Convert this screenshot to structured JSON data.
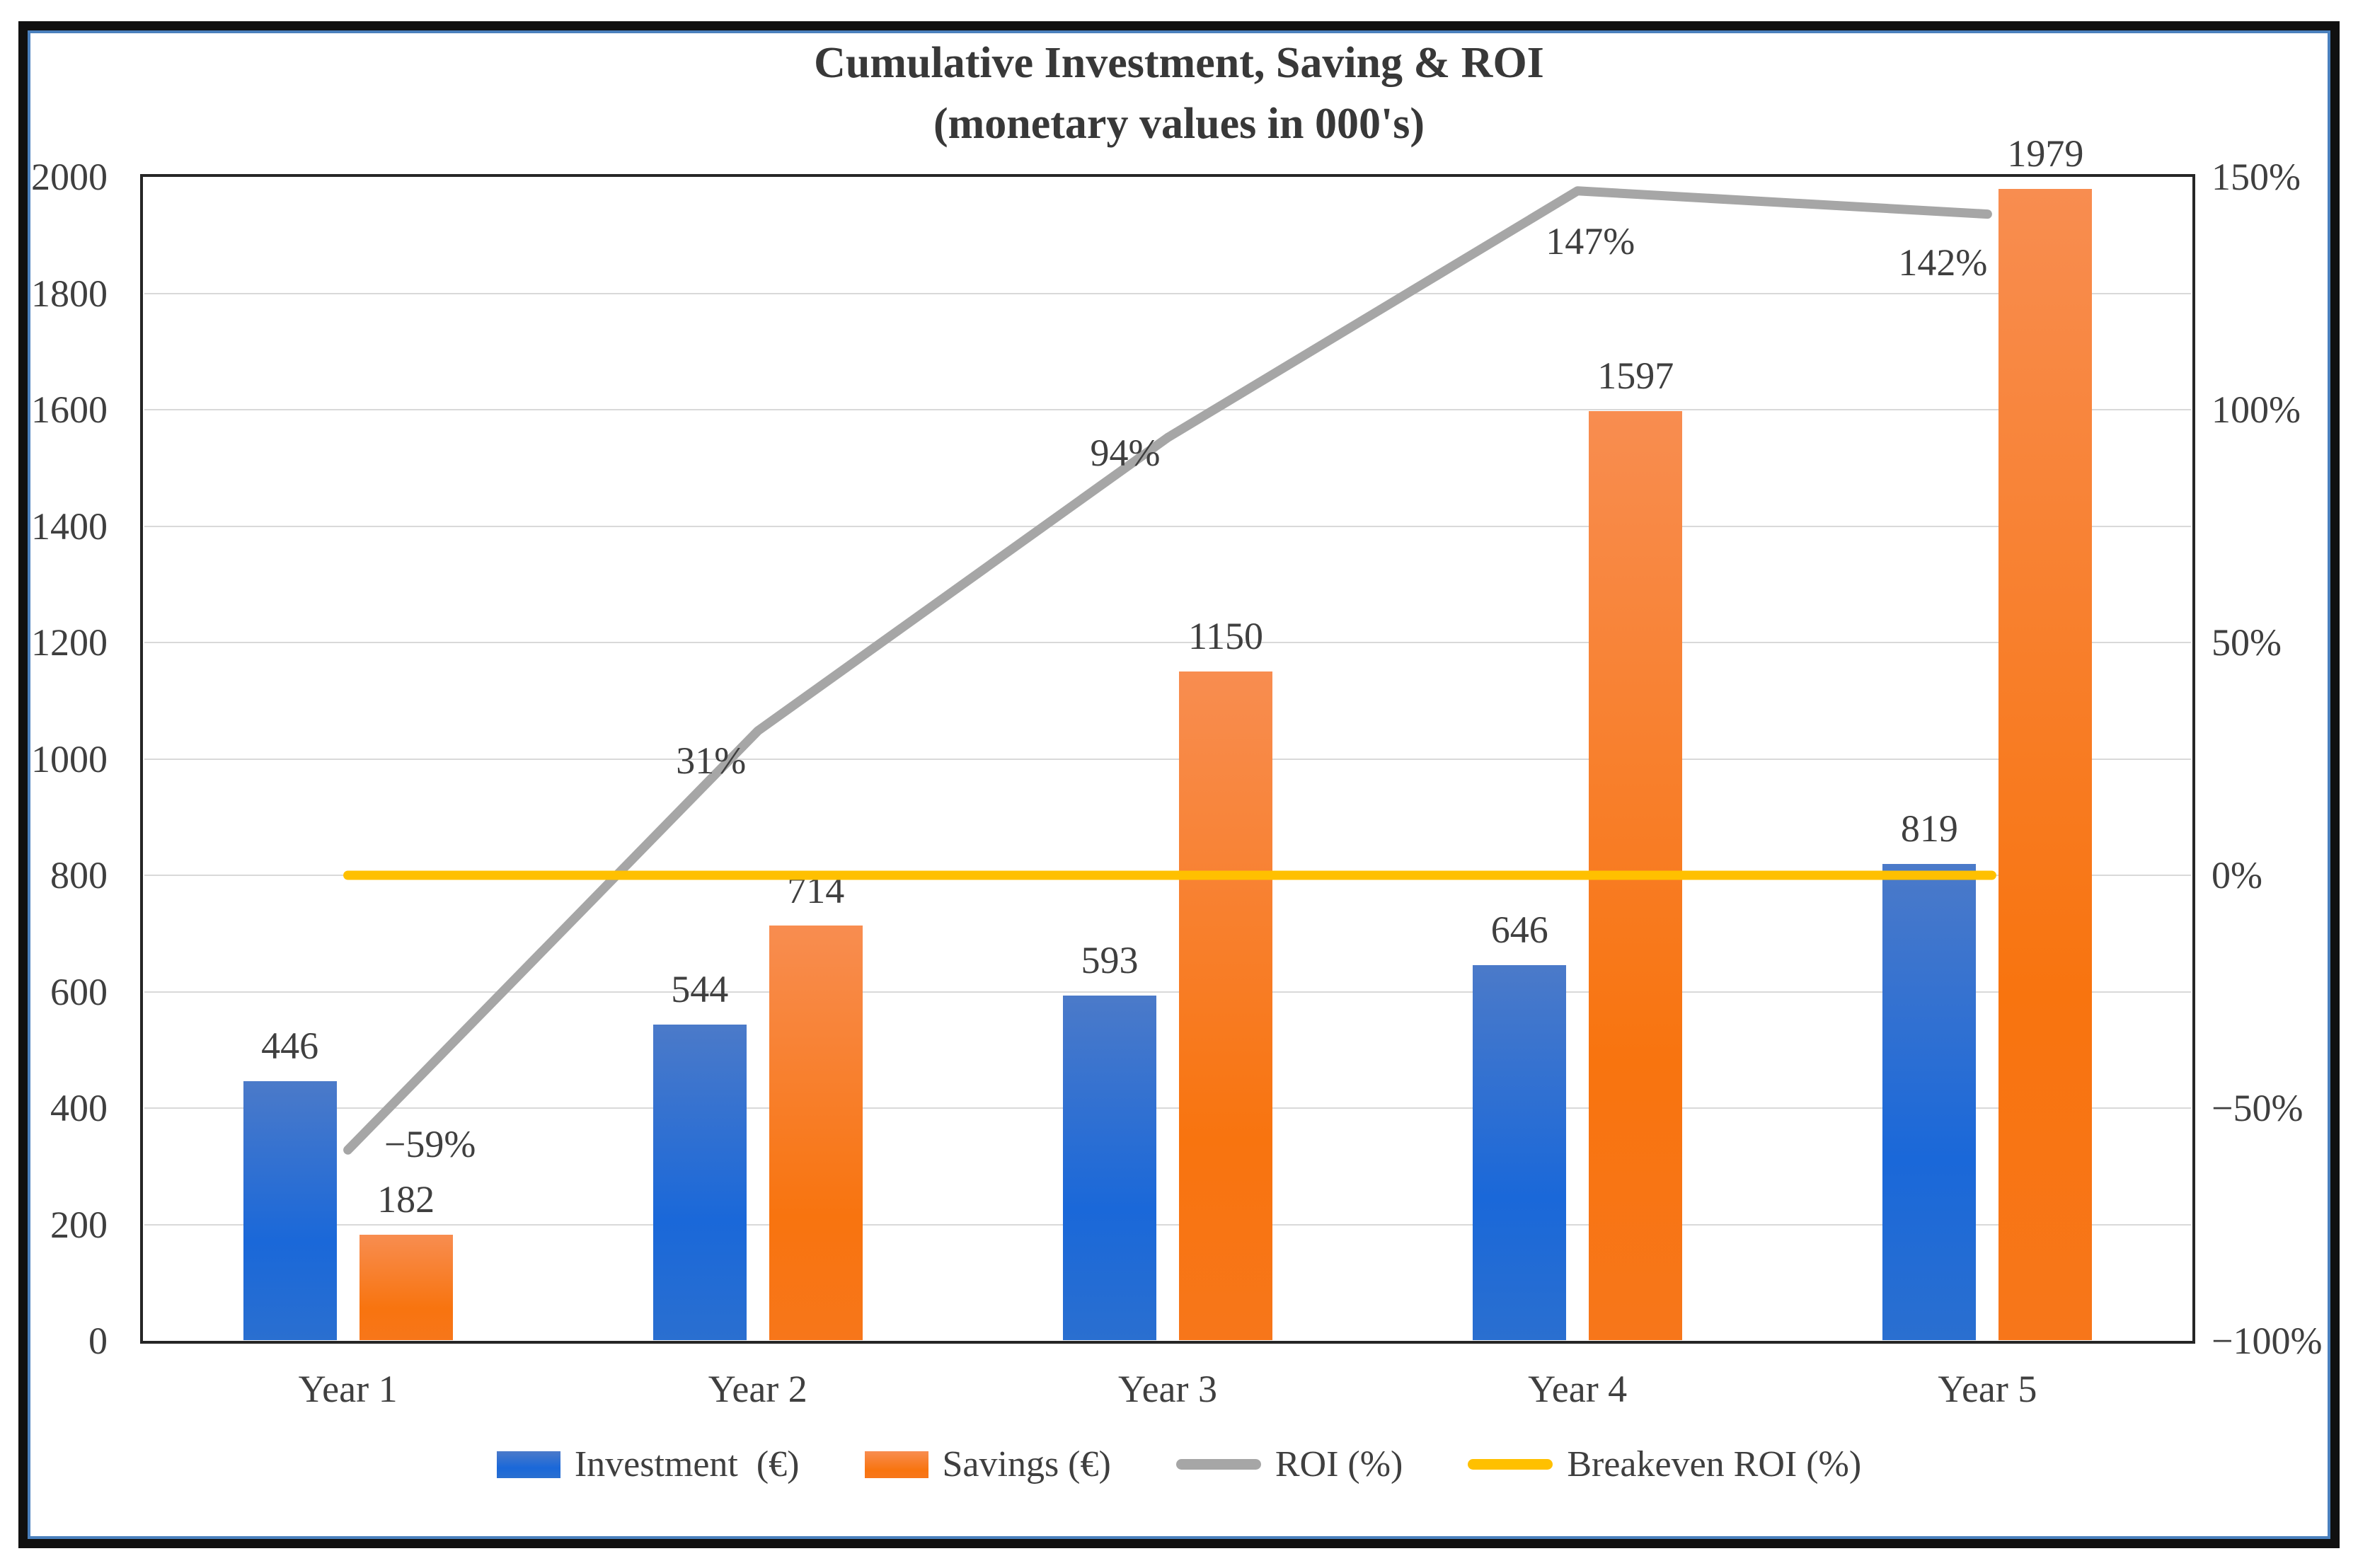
{
  "chart_data": {
    "type": "combo-bar-line",
    "title": "Cumulative Investment, Saving & ROI",
    "subtitle": "(monetary values in 000's)",
    "categories": [
      "Year 1",
      "Year 2",
      "Year 3",
      "Year 4",
      "Year 5"
    ],
    "bar_series": [
      {
        "name": "Investment (€)",
        "values": [
          446,
          544,
          593,
          646,
          819
        ]
      },
      {
        "name": "Savings (€)",
        "values": [
          182,
          714,
          1150,
          1597,
          1979
        ]
      }
    ],
    "line_series": [
      {
        "name": "ROI (%)",
        "values_pct": [
          -59,
          31,
          94,
          147,
          142
        ],
        "point_labels": [
          "−59%",
          "31%",
          "94%",
          "147%",
          "142%"
        ]
      },
      {
        "name": "Breakeven ROI (%)",
        "value_pct": 0
      }
    ],
    "left_axis": {
      "min": 0,
      "max": 2000,
      "step": 200,
      "tick_labels": [
        "0",
        "200",
        "400",
        "600",
        "800",
        "1000",
        "1200",
        "1400",
        "1600",
        "1800",
        "2000"
      ]
    },
    "right_axis": {
      "min": -100,
      "max": 150,
      "step": 50,
      "tick_values": [
        150,
        100,
        50,
        0,
        -50,
        -100
      ],
      "tick_labels": [
        "150%",
        "100%",
        "50%",
        "0%",
        "−50%",
        "−100%"
      ]
    },
    "legend": [
      {
        "label": "Investment  (€)",
        "swatch": "bar",
        "key": "investment"
      },
      {
        "label": "Savings (€)",
        "swatch": "bar",
        "key": "savings"
      },
      {
        "label": "ROI (%)",
        "swatch": "line",
        "key": "roi"
      },
      {
        "label": "Breakeven ROI (%)",
        "swatch": "line",
        "key": "breakeven"
      }
    ],
    "colors": {
      "investment_top": "#4b7ac9",
      "investment_bottom": "#1a68d9",
      "savings_top": "#f88d50",
      "savings_bottom": "#f8740f",
      "roi": "#a6a6a6",
      "breakeven": "#ffc000",
      "grid": "#d9d9d9",
      "text": "#3f3f3f",
      "title": "#383838",
      "plot_border": "#262626",
      "frame_black": "#101010",
      "frame_blue": "#4a80bd"
    },
    "grid": true,
    "legend_position": "bottom"
  }
}
